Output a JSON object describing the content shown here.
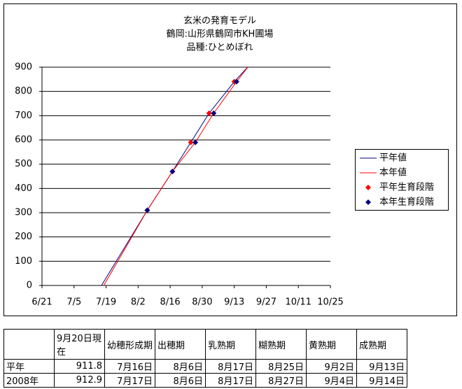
{
  "chart_data": {
    "type": "line",
    "title": [
      "玄米の発育モデル",
      "鶴岡:山形県鶴岡市KH圃場",
      "品種:ひとめぼれ"
    ],
    "xlim": [
      "6/21",
      "10/25"
    ],
    "xticks": [
      "6/21",
      "7/5",
      "7/19",
      "8/2",
      "8/16",
      "8/30",
      "9/13",
      "9/27",
      "10/11",
      "10/25"
    ],
    "ylim": [
      0,
      900
    ],
    "yticks": [
      0,
      100,
      200,
      300,
      400,
      500,
      600,
      700,
      800,
      900
    ],
    "grid": true,
    "legend": "right",
    "series": [
      {
        "name": "平年値",
        "color": "#000080",
        "kind": "line",
        "x": [
          "7/17",
          "8/6",
          "8/17",
          "8/25",
          "9/2",
          "9/13",
          "9/20"
        ],
        "values": [
          0,
          310,
          470,
          590,
          710,
          840,
          912
        ]
      },
      {
        "name": "本年値",
        "color": "#ff0000",
        "kind": "line",
        "x": [
          "7/18",
          "8/6",
          "8/17",
          "8/27",
          "9/4",
          "9/14",
          "9/20"
        ],
        "values": [
          0,
          310,
          470,
          590,
          710,
          840,
          913
        ]
      },
      {
        "name": "平年生育段階",
        "color": "#ff0000",
        "kind": "marker",
        "x": [
          "8/6",
          "8/17",
          "8/25",
          "9/2",
          "9/13"
        ],
        "values": [
          310,
          470,
          590,
          710,
          840
        ]
      },
      {
        "name": "本年生育段階",
        "color": "#000080",
        "kind": "marker",
        "x": [
          "8/6",
          "8/17",
          "8/27",
          "9/4",
          "9/14"
        ],
        "values": [
          310,
          470,
          590,
          710,
          840
        ]
      }
    ]
  },
  "table": {
    "header": [
      "9月20日現在",
      "幼穂形成期",
      "出穂期",
      "乳熟期",
      "糊熟期",
      "黄熟期",
      "成熟期"
    ],
    "rows": [
      [
        "平年",
        "911.8",
        "7月16日",
        "8月6日",
        "8月17日",
        "8月25日",
        "9月2日",
        "9月13日"
      ],
      [
        "2008年",
        "912.9",
        "7月17日",
        "8月6日",
        "8月17日",
        "8月27日",
        "9月4日",
        "9月14日"
      ]
    ]
  }
}
